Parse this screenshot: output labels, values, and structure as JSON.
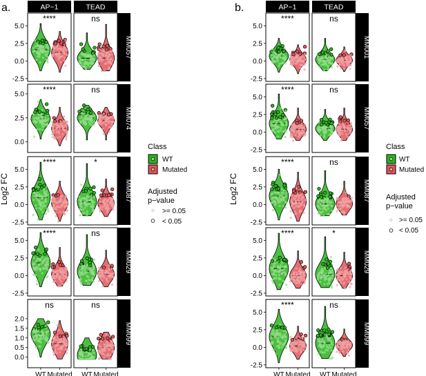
{
  "colors": {
    "wt": "#2bb51e",
    "mutated": "#e0555a",
    "strip": "#000000",
    "strip_text": "#ffffff",
    "panel_border": "#000000"
  },
  "ylabel": "Log2 FC",
  "legend": {
    "class_title": "Class",
    "class_items": [
      "WT",
      "Mutated"
    ],
    "p_title_line1": "Adjusted",
    "p_title_line2": "p−value",
    "p_items": [
      ">= 0.05",
      "< 0.05"
    ]
  },
  "chart_data": [
    {
      "type": "violin+jitter",
      "label": "a.",
      "columns": [
        "AP−1",
        "TEAD"
      ],
      "x_categories": [
        "WT",
        "Mutated"
      ],
      "rows": [
        {
          "name": "MM057",
          "ylim": [
            -2.9,
            6.8
          ],
          "ticks": [
            -2.5,
            0.0,
            2.5,
            5.0
          ],
          "sig": [
            "****",
            "ns"
          ],
          "medians": [
            [
              1.6,
              1.2
            ],
            [
              0.4,
              0.4
            ]
          ],
          "ranges": [
            [
              [
                -1.4,
                5.3
              ],
              [
                -1.6,
                4.2
              ]
            ],
            [
              [
                -1.2,
                4.0
              ],
              [
                -1.4,
                5.2
              ]
            ]
          ]
        },
        {
          "name": "MM074",
          "ylim": [
            -1.1,
            6.0
          ],
          "ticks": [
            0.0,
            2.5,
            5.0
          ],
          "sig": [
            "****",
            "ns"
          ],
          "medians": [
            [
              2.4,
              1.4
            ],
            [
              2.5,
              2.2
            ]
          ],
          "ranges": [
            [
              [
                0.3,
                4.4
              ],
              [
                -0.4,
                3.6
              ]
            ],
            [
              [
                0.2,
                3.8
              ],
              [
                0.2,
                3.6
              ]
            ]
          ]
        },
        {
          "name": "MM087",
          "ylim": [
            -2.9,
            6.8
          ],
          "ticks": [
            -2.5,
            0.0,
            2.5,
            5.0
          ],
          "sig": [
            "****",
            "*"
          ],
          "medians": [
            [
              1.0,
              0.2
            ],
            [
              0.4,
              0.2
            ]
          ],
          "ranges": [
            [
              [
                -2.2,
                6.0
              ],
              [
                -2.4,
                3.3
              ]
            ],
            [
              [
                -1.6,
                5.8
              ],
              [
                -1.7,
                3.6
              ]
            ]
          ]
        },
        {
          "name": "MM029",
          "ylim": [
            -2.9,
            6.8
          ],
          "ticks": [
            -2.5,
            0.0,
            2.5,
            5.0
          ],
          "sig": [
            "****",
            "ns"
          ],
          "medians": [
            [
              1.8,
              0.2
            ],
            [
              0.6,
              0.2
            ]
          ],
          "ranges": [
            [
              [
                -1.6,
                6.1
              ],
              [
                -1.5,
                4.0
              ]
            ],
            [
              [
                -1.4,
                5.8
              ],
              [
                -1.6,
                3.6
              ]
            ]
          ]
        },
        {
          "name": "MM099",
          "ylim": [
            -0.55,
            3.0
          ],
          "ticks": [
            0.0,
            0.5,
            1.0,
            1.5,
            2.0
          ],
          "sig": [
            "ns",
            "ns"
          ],
          "medians": [
            [
              1.2,
              0.7
            ],
            [
              0.1,
              0.5
            ]
          ],
          "ranges": [
            [
              [
                0.0,
                2.0
              ],
              [
                -0.1,
                1.9
              ]
            ],
            [
              [
                -0.1,
                1.0
              ],
              [
                -0.1,
                1.3
              ]
            ]
          ]
        }
      ]
    },
    {
      "type": "violin+jitter",
      "label": "b.",
      "columns": [
        "AP−1",
        "TEAD"
      ],
      "x_categories": [
        "WT",
        "Mutated"
      ],
      "rows": [
        {
          "name": "MM001",
          "ylim": [
            -2.9,
            6.8
          ],
          "ticks": [
            -2.5,
            0.0,
            2.5,
            5.0
          ],
          "sig": [
            "****",
            "ns"
          ],
          "medians": [
            [
              0.7,
              0.2
            ],
            [
              0.2,
              0.1
            ]
          ],
          "ranges": [
            [
              [
                -1.6,
                3.2
              ],
              [
                -1.8,
                2.3
              ]
            ],
            [
              [
                -1.4,
                3.2
              ],
              [
                -1.5,
                2.0
              ]
            ]
          ]
        },
        {
          "name": "MM057",
          "ylim": [
            -2.9,
            6.8
          ],
          "ticks": [
            -2.5,
            0.0,
            2.5,
            5.0
          ],
          "sig": [
            "****",
            "ns"
          ],
          "medians": [
            [
              1.2,
              0.4
            ],
            [
              0.5,
              0.4
            ]
          ],
          "ranges": [
            [
              [
                -1.0,
                5.4
              ],
              [
                -1.2,
                3.4
              ]
            ],
            [
              [
                -1.2,
                3.2
              ],
              [
                -1.2,
                3.4
              ]
            ]
          ]
        },
        {
          "name": "MM087",
          "ylim": [
            -2.9,
            6.8
          ],
          "ticks": [
            -2.5,
            0.0,
            2.5,
            5.0
          ],
          "sig": [
            "****",
            "ns"
          ],
          "medians": [
            [
              1.2,
              0.4
            ],
            [
              0.1,
              0.1
            ]
          ],
          "ranges": [
            [
              [
                -2.2,
                5.0
              ],
              [
                -2.4,
                4.6
              ]
            ],
            [
              [
                -1.6,
                4.8
              ],
              [
                -1.5,
                3.3
              ]
            ]
          ]
        },
        {
          "name": "MM029",
          "ylim": [
            -2.9,
            6.8
          ],
          "ticks": [
            -2.5,
            0.0,
            2.5,
            5.0
          ],
          "sig": [
            "****",
            "*"
          ],
          "medians": [
            [
              1.0,
              0.0
            ],
            [
              0.2,
              0.0
            ]
          ],
          "ranges": [
            [
              [
                -2.0,
                6.0
              ],
              [
                -1.8,
                3.5
              ]
            ],
            [
              [
                -1.7,
                5.5
              ],
              [
                -1.8,
                3.3
              ]
            ]
          ]
        },
        {
          "name": "MM099",
          "ylim": [
            -2.9,
            6.8
          ],
          "ticks": [
            -2.5,
            0.0,
            2.5,
            5.0
          ],
          "sig": [
            "****",
            "ns"
          ],
          "medians": [
            [
              1.5,
              0.2
            ],
            [
              0.6,
              0.3
            ]
          ],
          "ranges": [
            [
              [
                -2.2,
                5.4
              ],
              [
                -1.7,
                3.0
              ]
            ],
            [
              [
                -1.6,
                5.8
              ],
              [
                -1.3,
                2.6
              ]
            ]
          ]
        }
      ]
    }
  ]
}
